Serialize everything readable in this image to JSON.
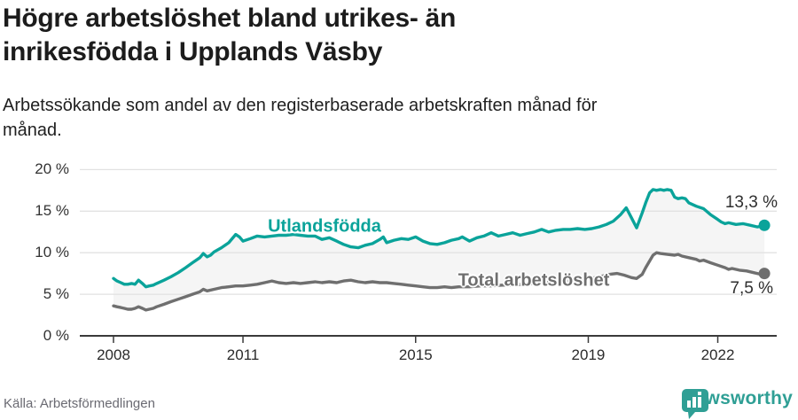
{
  "header": {
    "title_line1": "Högre arbetslöshet bland utrikes- än",
    "title_line2": "inrikesfödda i Upplands Väsby",
    "subtitle_line1": "Arbetssökande som andel av den registerbaserade arbetskraften månad för",
    "subtitle_line2": "månad."
  },
  "footer": {
    "source": "Källa: Arbetsförmedlingen",
    "brand": "Newsworthy"
  },
  "colors": {
    "foreign_born": "#0aa39a",
    "total": "#6f6f6f",
    "band_fill": "#f5f5f5",
    "grid": "#e2e2e2",
    "axis": "#3a3a3a",
    "brand_teal": "#2f9f95",
    "value_label": "#2e2e2e"
  },
  "chart_data": {
    "type": "line",
    "title": "Arbetssökande som andel av den registerbaserade arbetskraften månad för månad",
    "xlabel": "",
    "ylabel": "",
    "ylim": [
      0,
      20
    ],
    "x_range": [
      2007.25,
      2023.35
    ],
    "grid": true,
    "legend_position": "inline-labels",
    "y_ticks": [
      {
        "value": 0,
        "label": "0 %"
      },
      {
        "value": 5,
        "label": "5 %"
      },
      {
        "value": 10,
        "label": "10 %"
      },
      {
        "value": 15,
        "label": "15 %"
      },
      {
        "value": 20,
        "label": "20 %"
      }
    ],
    "x_ticks": [
      {
        "value": 2008,
        "label": "2008"
      },
      {
        "value": 2011,
        "label": "2011"
      },
      {
        "value": 2015,
        "label": "2015"
      },
      {
        "value": 2019,
        "label": "2019"
      },
      {
        "value": 2022,
        "label": "2022"
      }
    ],
    "band_between_series": true,
    "series": [
      {
        "name": "Utlandsfödda",
        "color": "#0aa39a",
        "end_value": 13.3,
        "end_label": "13,3 %",
        "points": [
          [
            2008.0,
            6.9
          ],
          [
            2008.08,
            6.6
          ],
          [
            2008.17,
            6.4
          ],
          [
            2008.25,
            6.2
          ],
          [
            2008.33,
            6.2
          ],
          [
            2008.42,
            6.3
          ],
          [
            2008.5,
            6.2
          ],
          [
            2008.58,
            6.7
          ],
          [
            2008.67,
            6.3
          ],
          [
            2008.75,
            5.9
          ],
          [
            2008.83,
            6.0
          ],
          [
            2008.92,
            6.1
          ],
          [
            2009.0,
            6.3
          ],
          [
            2009.17,
            6.7
          ],
          [
            2009.33,
            7.1
          ],
          [
            2009.5,
            7.6
          ],
          [
            2009.67,
            8.2
          ],
          [
            2009.83,
            8.8
          ],
          [
            2010.0,
            9.4
          ],
          [
            2010.08,
            9.9
          ],
          [
            2010.17,
            9.5
          ],
          [
            2010.25,
            9.7
          ],
          [
            2010.33,
            10.1
          ],
          [
            2010.5,
            10.6
          ],
          [
            2010.67,
            11.2
          ],
          [
            2010.83,
            12.2
          ],
          [
            2010.92,
            11.9
          ],
          [
            2011.0,
            11.4
          ],
          [
            2011.17,
            11.7
          ],
          [
            2011.33,
            12.0
          ],
          [
            2011.5,
            11.9
          ],
          [
            2011.67,
            12.0
          ],
          [
            2011.83,
            12.1
          ],
          [
            2012.0,
            12.1
          ],
          [
            2012.17,
            12.2
          ],
          [
            2012.33,
            12.1
          ],
          [
            2012.5,
            12.0
          ],
          [
            2012.67,
            12.0
          ],
          [
            2012.83,
            11.6
          ],
          [
            2013.0,
            11.8
          ],
          [
            2013.17,
            11.4
          ],
          [
            2013.33,
            11.0
          ],
          [
            2013.5,
            10.7
          ],
          [
            2013.67,
            10.6
          ],
          [
            2013.83,
            10.9
          ],
          [
            2014.0,
            11.1
          ],
          [
            2014.17,
            11.6
          ],
          [
            2014.25,
            11.9
          ],
          [
            2014.33,
            11.2
          ],
          [
            2014.5,
            11.5
          ],
          [
            2014.67,
            11.7
          ],
          [
            2014.83,
            11.6
          ],
          [
            2015.0,
            11.9
          ],
          [
            2015.17,
            11.4
          ],
          [
            2015.33,
            11.1
          ],
          [
            2015.5,
            11.0
          ],
          [
            2015.67,
            11.2
          ],
          [
            2015.83,
            11.5
          ],
          [
            2016.0,
            11.7
          ],
          [
            2016.08,
            11.9
          ],
          [
            2016.25,
            11.4
          ],
          [
            2016.42,
            11.8
          ],
          [
            2016.58,
            12.0
          ],
          [
            2016.75,
            12.4
          ],
          [
            2016.92,
            12.0
          ],
          [
            2017.08,
            12.2
          ],
          [
            2017.25,
            12.4
          ],
          [
            2017.42,
            12.1
          ],
          [
            2017.58,
            12.3
          ],
          [
            2017.75,
            12.5
          ],
          [
            2017.92,
            12.8
          ],
          [
            2018.08,
            12.5
          ],
          [
            2018.25,
            12.7
          ],
          [
            2018.42,
            12.8
          ],
          [
            2018.58,
            12.8
          ],
          [
            2018.75,
            12.9
          ],
          [
            2018.92,
            12.8
          ],
          [
            2019.08,
            12.9
          ],
          [
            2019.25,
            13.1
          ],
          [
            2019.42,
            13.4
          ],
          [
            2019.58,
            13.8
          ],
          [
            2019.75,
            14.6
          ],
          [
            2019.88,
            15.4
          ],
          [
            2020.0,
            14.2
          ],
          [
            2020.12,
            13.0
          ],
          [
            2020.25,
            14.8
          ],
          [
            2020.33,
            16.0
          ],
          [
            2020.42,
            17.2
          ],
          [
            2020.5,
            17.6
          ],
          [
            2020.58,
            17.5
          ],
          [
            2020.67,
            17.6
          ],
          [
            2020.75,
            17.5
          ],
          [
            2020.83,
            17.6
          ],
          [
            2020.92,
            17.5
          ],
          [
            2021.0,
            16.7
          ],
          [
            2021.08,
            16.5
          ],
          [
            2021.17,
            16.6
          ],
          [
            2021.25,
            16.5
          ],
          [
            2021.33,
            16.0
          ],
          [
            2021.5,
            15.6
          ],
          [
            2021.67,
            15.3
          ],
          [
            2021.83,
            14.6
          ],
          [
            2022.0,
            14.0
          ],
          [
            2022.08,
            13.7
          ],
          [
            2022.17,
            13.5
          ],
          [
            2022.25,
            13.6
          ],
          [
            2022.42,
            13.4
          ],
          [
            2022.58,
            13.5
          ],
          [
            2022.75,
            13.3
          ],
          [
            2022.92,
            13.1
          ],
          [
            2023.08,
            13.3
          ]
        ]
      },
      {
        "name": "Total arbetslöshet",
        "color": "#6f6f6f",
        "end_value": 7.5,
        "end_label": "7,5 %",
        "points": [
          [
            2008.0,
            3.6
          ],
          [
            2008.08,
            3.5
          ],
          [
            2008.17,
            3.4
          ],
          [
            2008.25,
            3.3
          ],
          [
            2008.33,
            3.2
          ],
          [
            2008.42,
            3.2
          ],
          [
            2008.5,
            3.3
          ],
          [
            2008.58,
            3.5
          ],
          [
            2008.67,
            3.3
          ],
          [
            2008.75,
            3.1
          ],
          [
            2008.83,
            3.2
          ],
          [
            2008.92,
            3.3
          ],
          [
            2009.0,
            3.5
          ],
          [
            2009.17,
            3.8
          ],
          [
            2009.33,
            4.1
          ],
          [
            2009.5,
            4.4
          ],
          [
            2009.67,
            4.7
          ],
          [
            2009.83,
            5.0
          ],
          [
            2010.0,
            5.3
          ],
          [
            2010.08,
            5.6
          ],
          [
            2010.17,
            5.4
          ],
          [
            2010.33,
            5.6
          ],
          [
            2010.5,
            5.8
          ],
          [
            2010.67,
            5.9
          ],
          [
            2010.83,
            6.0
          ],
          [
            2011.0,
            6.0
          ],
          [
            2011.17,
            6.1
          ],
          [
            2011.33,
            6.2
          ],
          [
            2011.5,
            6.4
          ],
          [
            2011.67,
            6.6
          ],
          [
            2011.83,
            6.4
          ],
          [
            2012.0,
            6.3
          ],
          [
            2012.17,
            6.4
          ],
          [
            2012.33,
            6.3
          ],
          [
            2012.5,
            6.4
          ],
          [
            2012.67,
            6.5
          ],
          [
            2012.83,
            6.4
          ],
          [
            2013.0,
            6.5
          ],
          [
            2013.17,
            6.4
          ],
          [
            2013.33,
            6.6
          ],
          [
            2013.5,
            6.7
          ],
          [
            2013.67,
            6.5
          ],
          [
            2013.83,
            6.4
          ],
          [
            2014.0,
            6.5
          ],
          [
            2014.17,
            6.4
          ],
          [
            2014.33,
            6.4
          ],
          [
            2014.5,
            6.3
          ],
          [
            2014.67,
            6.2
          ],
          [
            2014.83,
            6.1
          ],
          [
            2015.0,
            6.0
          ],
          [
            2015.17,
            5.9
          ],
          [
            2015.33,
            5.8
          ],
          [
            2015.5,
            5.8
          ],
          [
            2015.67,
            5.9
          ],
          [
            2015.83,
            5.8
          ],
          [
            2016.0,
            5.9
          ],
          [
            2016.25,
            5.9
          ],
          [
            2016.5,
            6.0
          ],
          [
            2016.75,
            6.0
          ],
          [
            2017.0,
            6.1
          ],
          [
            2017.25,
            6.1
          ],
          [
            2017.5,
            6.2
          ],
          [
            2017.75,
            6.3
          ],
          [
            2018.0,
            6.4
          ],
          [
            2018.25,
            6.5
          ],
          [
            2018.5,
            6.6
          ],
          [
            2018.75,
            6.8
          ],
          [
            2019.0,
            6.9
          ],
          [
            2019.17,
            7.0
          ],
          [
            2019.33,
            7.2
          ],
          [
            2019.5,
            7.4
          ],
          [
            2019.67,
            7.5
          ],
          [
            2019.83,
            7.3
          ],
          [
            2020.0,
            7.0
          ],
          [
            2020.12,
            6.9
          ],
          [
            2020.25,
            7.4
          ],
          [
            2020.33,
            8.2
          ],
          [
            2020.42,
            9.0
          ],
          [
            2020.5,
            9.7
          ],
          [
            2020.58,
            10.0
          ],
          [
            2020.67,
            9.9
          ],
          [
            2020.83,
            9.8
          ],
          [
            2021.0,
            9.7
          ],
          [
            2021.08,
            9.8
          ],
          [
            2021.17,
            9.6
          ],
          [
            2021.33,
            9.4
          ],
          [
            2021.5,
            9.2
          ],
          [
            2021.58,
            9.0
          ],
          [
            2021.67,
            9.1
          ],
          [
            2021.83,
            8.8
          ],
          [
            2022.0,
            8.5
          ],
          [
            2022.17,
            8.2
          ],
          [
            2022.25,
            8.0
          ],
          [
            2022.33,
            8.1
          ],
          [
            2022.5,
            7.9
          ],
          [
            2022.67,
            7.8
          ],
          [
            2022.83,
            7.6
          ],
          [
            2023.0,
            7.4
          ],
          [
            2023.08,
            7.5
          ]
        ]
      }
    ]
  }
}
